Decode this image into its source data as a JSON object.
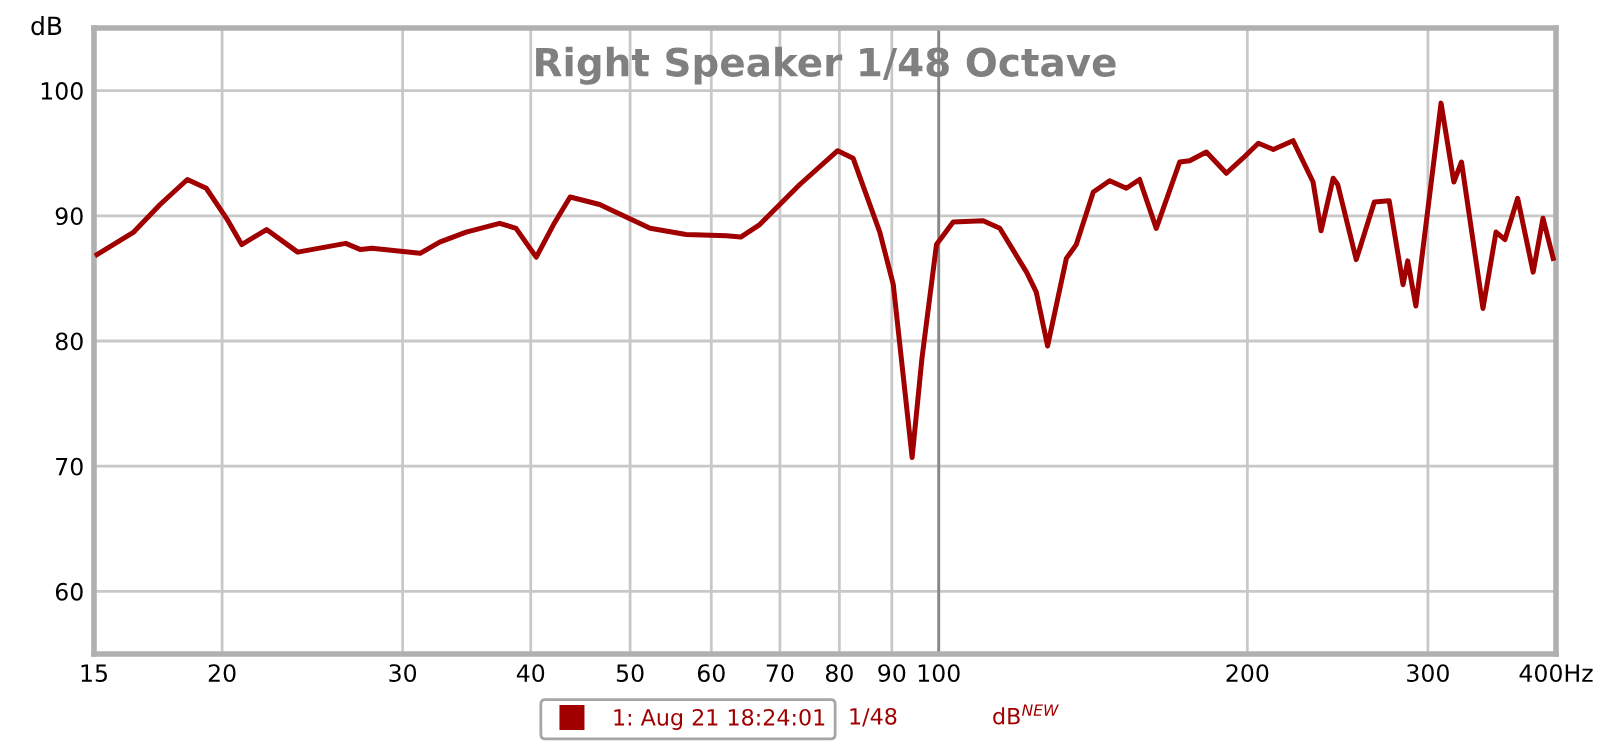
{
  "chart_data": {
    "type": "line",
    "title": "Right Speaker 1/48 Octave",
    "ylabel": "dB",
    "x": [
      15.1,
      16.4,
      17.4,
      18.5,
      19.3,
      20.2,
      20.9,
      22.1,
      23.7,
      26.4,
      27.3,
      28.0,
      31.2,
      32.6,
      34.6,
      37.3,
      38.7,
      40.5,
      42.1,
      43.7,
      46.7,
      48.1,
      52.3,
      56.7,
      62.1,
      64.1,
      66.9,
      73.2,
      79.7,
      82.5,
      87.6,
      90.3,
      94.2,
      96.3,
      99.5,
      103.3,
      110.5,
      114.7,
      121.8,
      124.5,
      127.7,
      133.2,
      136.2,
      141.5,
      146.8,
      152.4,
      157,
      163,
      171.8,
      175.7,
      182.4,
      190.8,
      198,
      205,
      212,
      221.6,
      231.8,
      236,
      242.5,
      245,
      255.4,
      266,
      275,
      283.7,
      286.7,
      292,
      309,
      318,
      323.5,
      339.5,
      349.6,
      356.7,
      367,
      380,
      388.5,
      397.5
    ],
    "series": [
      {
        "name": "1: Aug 21 18:24:01",
        "color": "#a00000",
        "values": [
          86.9,
          88.7,
          90.9,
          92.9,
          92.2,
          89.8,
          87.7,
          88.9,
          87.1,
          87.8,
          87.3,
          87.4,
          87.0,
          87.9,
          88.7,
          89.4,
          89.0,
          86.7,
          89.3,
          91.5,
          90.9,
          90.4,
          89.0,
          88.5,
          88.4,
          88.3,
          89.3,
          92.5,
          95.2,
          94.6,
          88.7,
          84.5,
          70.7,
          78.6,
          87.7,
          89.5,
          89.6,
          89.0,
          85.5,
          83.9,
          79.6,
          86.6,
          87.7,
          91.9,
          92.8,
          92.2,
          92.9,
          89.0,
          94.3,
          94.4,
          95.1,
          93.4,
          94.6,
          95.8,
          95.3,
          96.0,
          92.7,
          88.8,
          93.0,
          92.5,
          86.5,
          91.1,
          91.2,
          84.5,
          86.4,
          82.8,
          99.0,
          92.7,
          94.3,
          82.6,
          88.7,
          88.1,
          91.4,
          85.5,
          89.8,
          86.6
        ]
      }
    ],
    "log": "x",
    "xlim": [
      15,
      400
    ],
    "xticks": [
      15,
      20,
      30,
      40,
      50,
      60,
      70,
      80,
      90,
      100,
      200,
      300,
      {
        "value": 400,
        "label": "400Hz"
      }
    ],
    "ylim": [
      55,
      105
    ],
    "yticks": [
      60,
      70,
      80,
      90,
      100
    ],
    "grid": true,
    "legend": "bottom",
    "ref_lines": [
      {
        "axis": "x",
        "value": 100,
        "label": null,
        "color": "#888888"
      }
    ],
    "annotations": [
      "1/48",
      "dB$^{NEW}$"
    ]
  }
}
